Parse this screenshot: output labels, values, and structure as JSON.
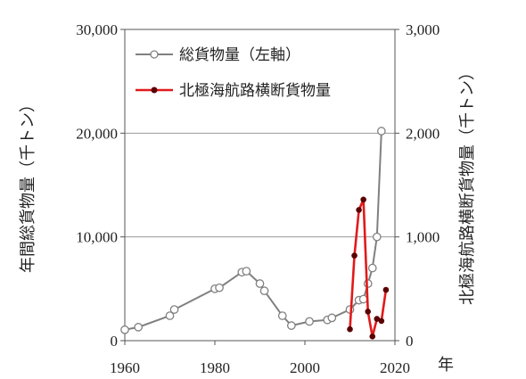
{
  "chart_data": {
    "type": "line",
    "xlabel": "年",
    "ylabel_left": "年間総貨物量（千トン）",
    "ylabel_right": "北極海航路横断貨物量（千トン）",
    "xlim": [
      1960,
      2020
    ],
    "ylim_left": [
      0,
      30000
    ],
    "ylim_right": [
      0,
      3000
    ],
    "x_ticks": [
      1960,
      1980,
      2000,
      2020
    ],
    "x_tick_labels": [
      "1960",
      "1980",
      "2000",
      "2020"
    ],
    "y_left_ticks": [
      0,
      10000,
      20000,
      30000
    ],
    "y_left_tick_labels": [
      "0",
      "10,000",
      "20,000",
      "30,000"
    ],
    "y_right_ticks": [
      0,
      1000,
      2000,
      3000
    ],
    "y_right_tick_labels": [
      "0",
      "1,000",
      "2,000",
      "3,000"
    ],
    "grid": "horizontal",
    "legend_position": "top-left",
    "series": [
      {
        "name": "総貨物量（左軸）",
        "axis": "left",
        "color": "#808080",
        "marker": "open-circle",
        "points": [
          {
            "x": 1960,
            "y": 1050
          },
          {
            "x": 1963,
            "y": 1300
          },
          {
            "x": 1970,
            "y": 2400
          },
          {
            "x": 1971,
            "y": 3000
          },
          {
            "x": 1980,
            "y": 5000
          },
          {
            "x": 1981,
            "y": 5100
          },
          {
            "x": 1986,
            "y": 6600
          },
          {
            "x": 1987,
            "y": 6700
          },
          {
            "x": 1990,
            "y": 5500
          },
          {
            "x": 1991,
            "y": 4800
          },
          {
            "x": 1995,
            "y": 2400
          },
          {
            "x": 1997,
            "y": 1450
          },
          {
            "x": 2001,
            "y": 1850
          },
          {
            "x": 2005,
            "y": 2000
          },
          {
            "x": 2006,
            "y": 2200
          },
          {
            "x": 2010,
            "y": 3000
          },
          {
            "x": 2012,
            "y": 3900
          },
          {
            "x": 2013,
            "y": 4000
          },
          {
            "x": 2014,
            "y": 5500
          },
          {
            "x": 2015,
            "y": 7000
          },
          {
            "x": 2016,
            "y": 10000
          },
          {
            "x": 2017,
            "y": 20200
          }
        ]
      },
      {
        "name": "北極海航路横断貨物量",
        "axis": "right",
        "color": "#e21a1a",
        "marker": "filled-circle",
        "marker_color": "#5a0000",
        "points": [
          {
            "x": 2010,
            "y": 110
          },
          {
            "x": 2011,
            "y": 820
          },
          {
            "x": 2012,
            "y": 1260
          },
          {
            "x": 2013,
            "y": 1360
          },
          {
            "x": 2014,
            "y": 280
          },
          {
            "x": 2015,
            "y": 40
          },
          {
            "x": 2016,
            "y": 210
          },
          {
            "x": 2017,
            "y": 190
          },
          {
            "x": 2018,
            "y": 490
          }
        ]
      }
    ]
  }
}
